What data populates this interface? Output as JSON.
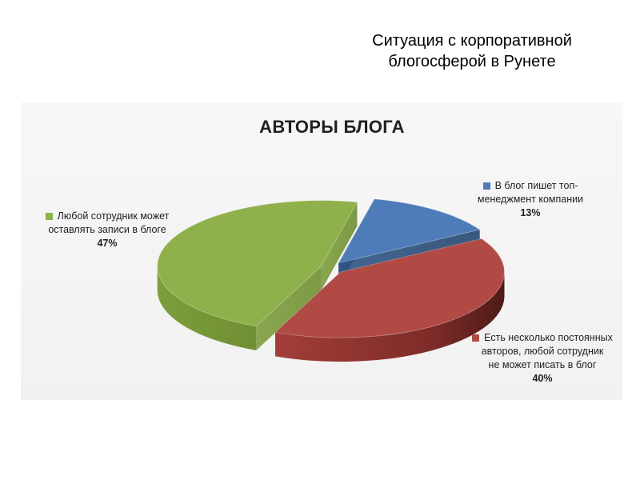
{
  "slide": {
    "title_lines": [
      "Ситуация с корпоративной",
      "блогосферой в Рунете"
    ]
  },
  "chart_data": {
    "type": "pie",
    "style": "3d-exploded",
    "title": "АВТОРЫ БЛОГА",
    "slices": [
      {
        "label_lines": [
          "В блог пишет топ-",
          "менеджмент компании"
        ],
        "value": 13,
        "percent_label": "13%",
        "color": "#4e7cb8"
      },
      {
        "label_lines": [
          "Есть несколько постоянных",
          "авторов, любой сотрудник",
          "не может писать в блог"
        ],
        "value": 40,
        "percent_label": "40%",
        "color": "#b14a45"
      },
      {
        "label_lines": [
          "Любой сотрудник может",
          "оставлять записи в блоге"
        ],
        "value": 47,
        "percent_label": "47%",
        "color": "#8fb14b"
      }
    ]
  }
}
